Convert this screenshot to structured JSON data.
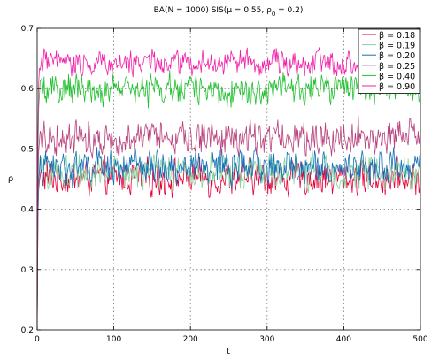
{
  "chart_data": {
    "type": "line",
    "title": {
      "prefix": "BA(N = 1000) SIS(",
      "mu_symbol": "μ",
      "mu_text": " = 0.55, ",
      "rho_symbol": "ρ",
      "rho_subscript": "0",
      "suffix": " = 0.2)"
    },
    "xlabel": "t",
    "ylabel": "ρ",
    "xlim": [
      0,
      500
    ],
    "ylim": [
      0.2,
      0.7
    ],
    "x_ticks": [
      0,
      100,
      200,
      300,
      400,
      500
    ],
    "y_ticks": [
      0.2,
      0.3,
      0.4,
      0.5,
      0.6,
      0.7
    ],
    "x_tick_labels": [
      "0",
      "100",
      "200",
      "300",
      "400",
      "500"
    ],
    "y_tick_labels": [
      "0.2",
      "0.3",
      "0.4",
      "0.5",
      "0.6",
      "0.7"
    ],
    "grid": true,
    "legend_position": "top-right",
    "initial_value": 0.2,
    "series": [
      {
        "name": "β = 0.18",
        "color": "#e8003a",
        "mean": 0.452,
        "amplitude": 0.022
      },
      {
        "name": "β = 0.19",
        "color": "#88d4a0",
        "mean": 0.462,
        "amplitude": 0.022
      },
      {
        "name": "β = 0.20",
        "color": "#1470b8",
        "mean": 0.47,
        "amplitude": 0.021
      },
      {
        "name": "β = 0.25",
        "color": "#b8407c",
        "mean": 0.52,
        "amplitude": 0.022
      },
      {
        "name": "β = 0.40",
        "color": "#22c030",
        "mean": 0.598,
        "amplitude": 0.019
      },
      {
        "name": "β = 0.90",
        "color": "#f020a8",
        "mean": 0.643,
        "amplitude": 0.016
      }
    ]
  }
}
